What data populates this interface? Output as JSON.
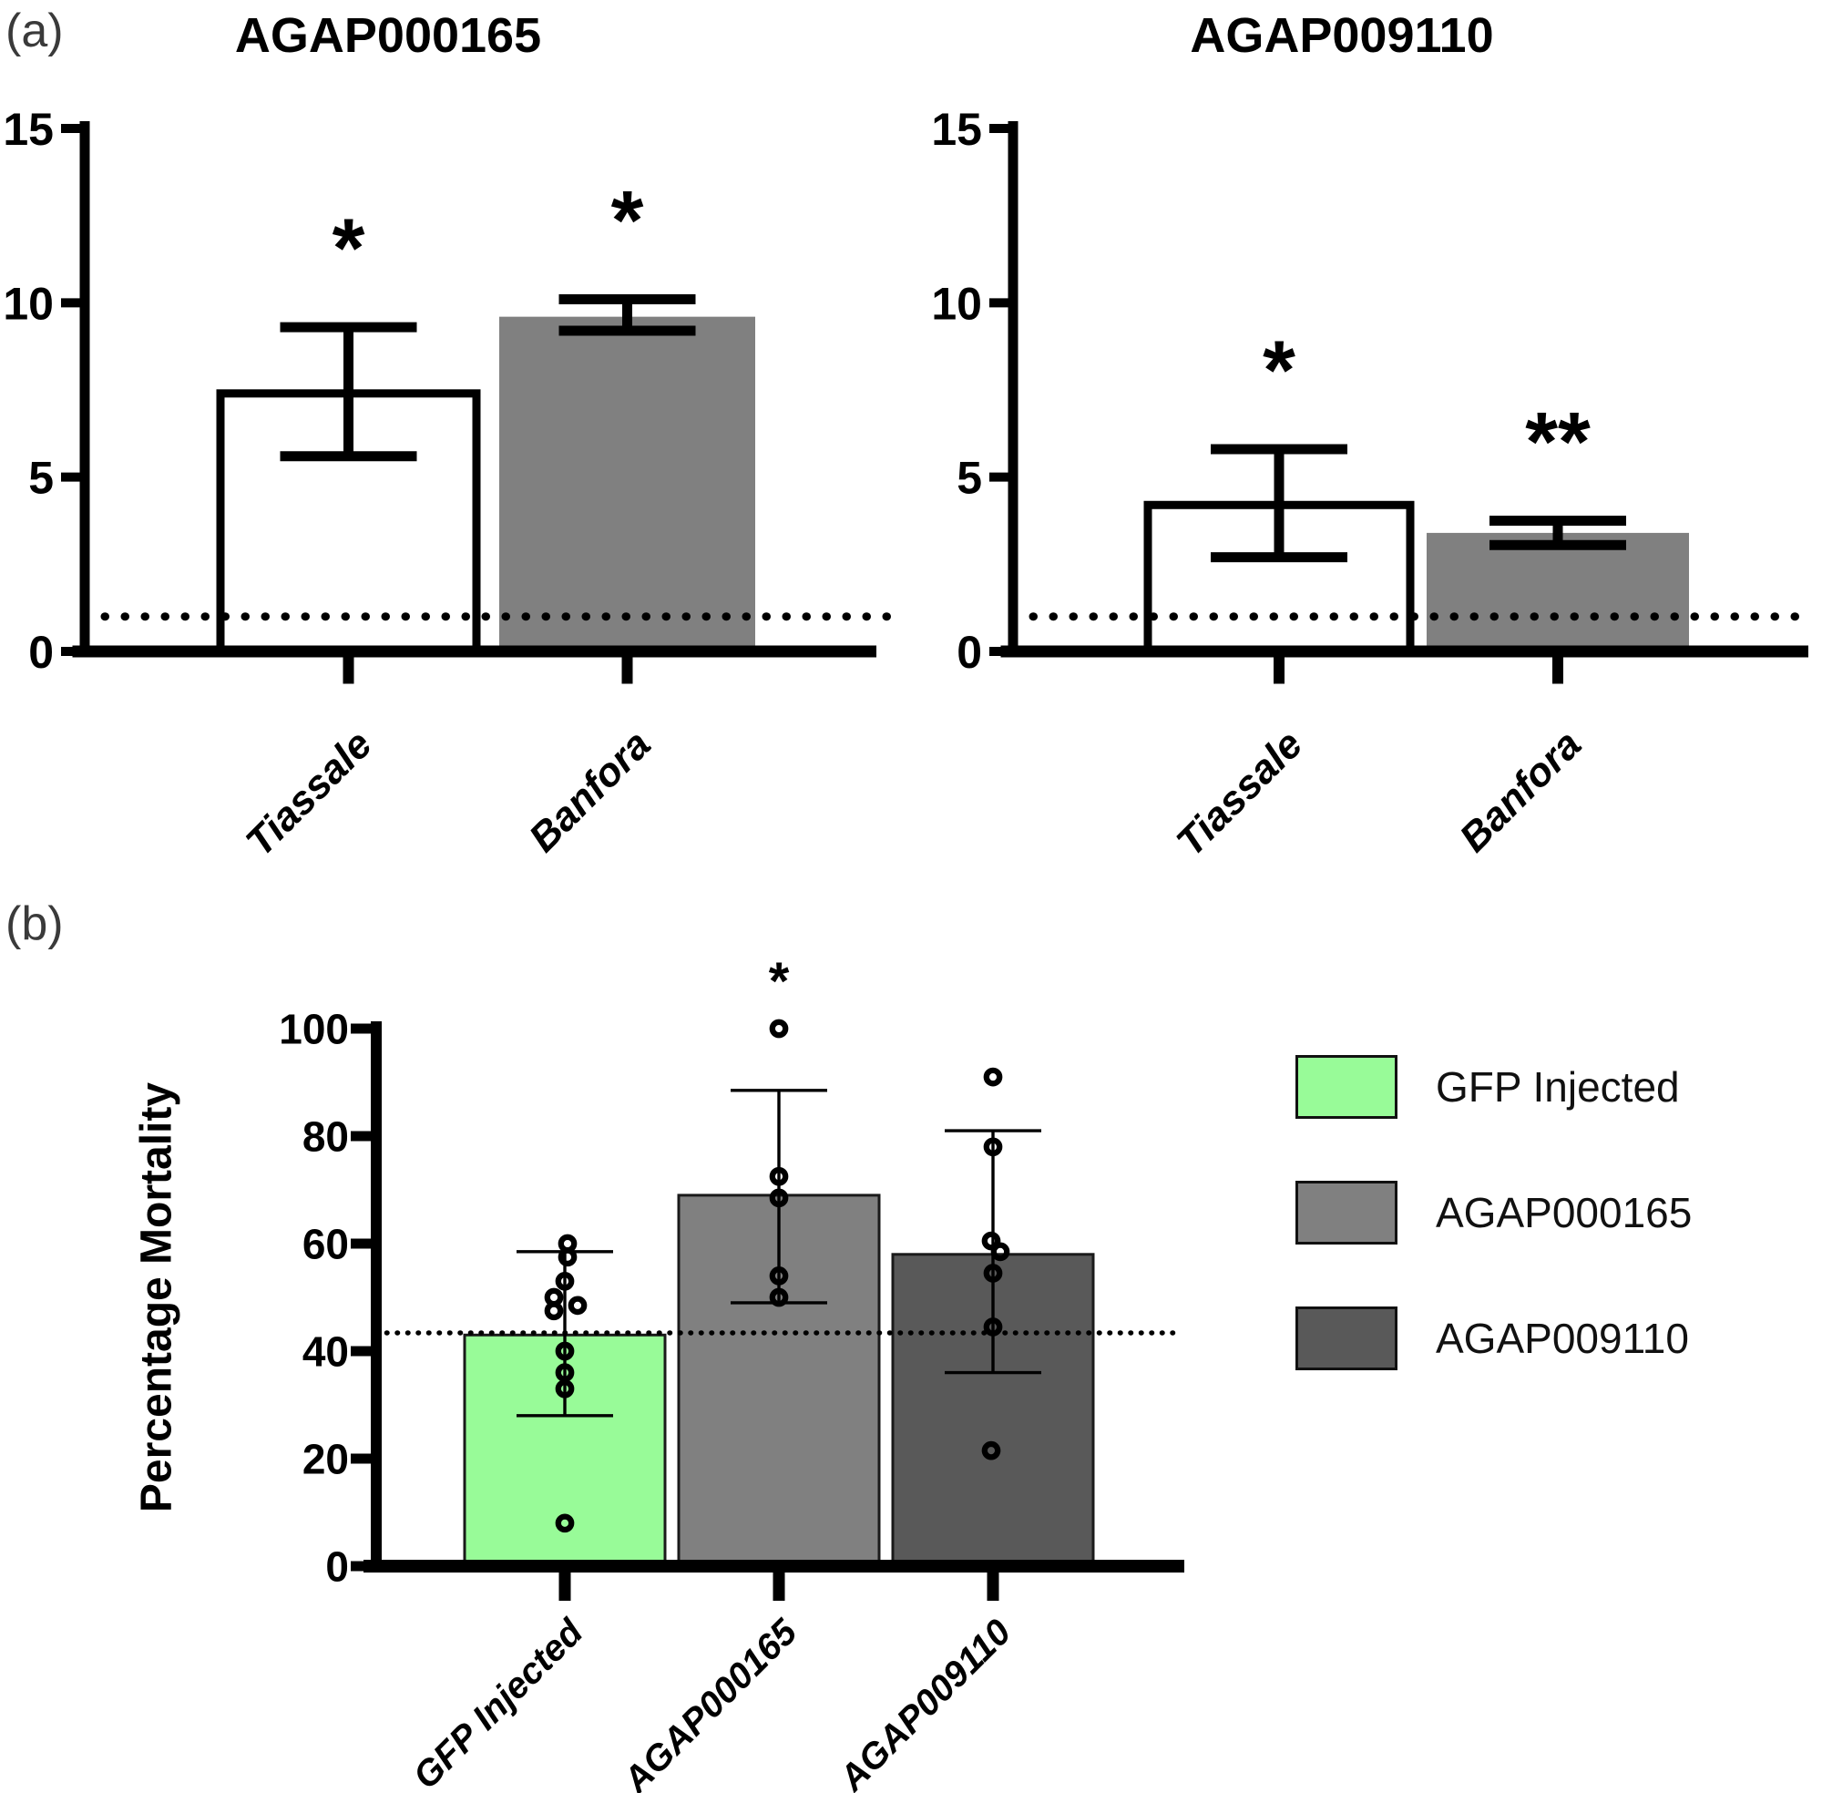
{
  "panel_a": {
    "label": "(a)"
  },
  "panel_b": {
    "label": "(b)"
  },
  "figure_colors": {
    "gfp_green": "#98FB98",
    "mid_gray": "#808080",
    "dark_gray": "#595959",
    "white_bar": "#FFFFFF"
  },
  "chart_data": [
    {
      "id": "a-left",
      "type": "bar",
      "title": "AGAP000165",
      "xlabel": "",
      "ylabel": "",
      "categories": [
        "Tiassale",
        "Banfora"
      ],
      "values": [
        7.4,
        9.6
      ],
      "error_low": [
        5.6,
        9.2
      ],
      "error_high": [
        9.3,
        10.1
      ],
      "significance": [
        "*",
        "*"
      ],
      "bar_colors": [
        "#FFFFFF",
        "#808080"
      ],
      "bar_strokes": [
        "#000000",
        "none"
      ],
      "ylim": [
        0,
        15
      ],
      "yticks": [
        0,
        5,
        10,
        15
      ],
      "reference_line_y": 1,
      "grid": "off",
      "legend_position": "none"
    },
    {
      "id": "a-right",
      "type": "bar",
      "title": "AGAP009110",
      "xlabel": "",
      "ylabel": "",
      "categories": [
        "Tiassale",
        "Banfora"
      ],
      "values": [
        4.2,
        3.4
      ],
      "error_low": [
        2.7,
        3.05
      ],
      "error_high": [
        5.8,
        3.75
      ],
      "significance": [
        "*",
        "**"
      ],
      "bar_colors": [
        "#FFFFFF",
        "#808080"
      ],
      "bar_strokes": [
        "#000000",
        "none"
      ],
      "ylim": [
        0,
        15
      ],
      "yticks": [
        0,
        5,
        10,
        15
      ],
      "reference_line_y": 1,
      "grid": "off",
      "legend_position": "none"
    },
    {
      "id": "b",
      "type": "bar",
      "title": "",
      "xlabel": "",
      "ylabel": "Percentage Mortality",
      "categories": [
        "GFP Injected",
        "AGAP000165",
        "AGAP009110"
      ],
      "values": [
        43,
        69,
        58
      ],
      "error_low": [
        28,
        49,
        36
      ],
      "error_high": [
        58.5,
        88.5,
        81
      ],
      "significance": [
        "",
        "*",
        ""
      ],
      "bar_colors": [
        "#98FB98",
        "#808080",
        "#595959"
      ],
      "bar_strokes": [
        "#1a1a1a",
        "#1a1a1a",
        "#1a1a1a"
      ],
      "scatter_points": [
        [
          60,
          57.5,
          53,
          50,
          48.5,
          47.5,
          40,
          36,
          33,
          8
        ],
        [
          100,
          72.5,
          68.5,
          54,
          50
        ],
        [
          91,
          78,
          60.5,
          58.5,
          54.5,
          44.5,
          21.5
        ]
      ],
      "ylim": [
        0,
        100
      ],
      "yticks": [
        0,
        20,
        40,
        60,
        80,
        100
      ],
      "reference_line_y": 43.4,
      "grid": "off",
      "legend_position": "right",
      "legend": [
        {
          "label": "GFP Injected",
          "color": "#98FB98"
        },
        {
          "label": "AGAP000165",
          "color": "#808080"
        },
        {
          "label": "AGAP009110",
          "color": "#595959"
        }
      ]
    }
  ]
}
